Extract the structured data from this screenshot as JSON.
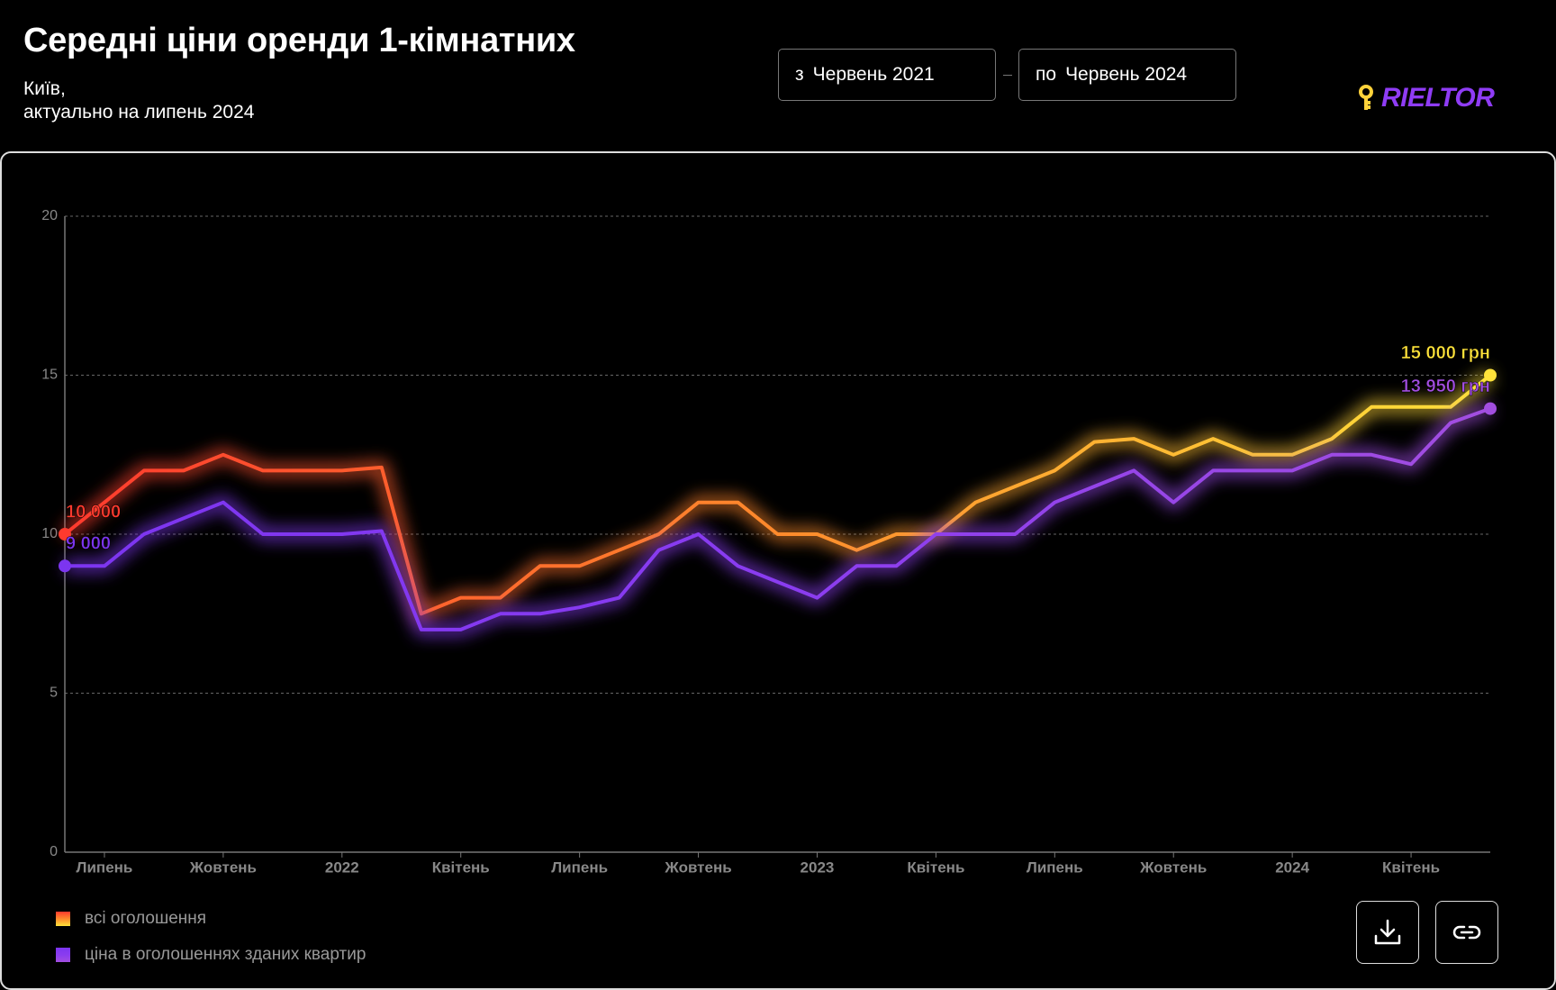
{
  "header": {
    "title": "Середні ціни оренди 1-кімнатних",
    "subtitle": [
      "Київ,",
      "актуально на липень 2024"
    ],
    "date_from": {
      "prefix": "з",
      "value": "Червень 2021"
    },
    "date_to": {
      "prefix": "по",
      "value": "Червень 2024"
    },
    "logo": "RIELTOR"
  },
  "chart_data": {
    "type": "line",
    "categories": [
      null,
      "Липень",
      null,
      null,
      "Жовтень",
      null,
      null,
      "2022",
      null,
      null,
      "Квітень",
      null,
      null,
      "Липень",
      null,
      null,
      "Жовтень",
      null,
      null,
      "2023",
      null,
      null,
      "Квітень",
      null,
      null,
      "Липень",
      null,
      null,
      "Жовтень",
      null,
      null,
      "2024",
      null,
      null,
      "Квітень",
      null,
      null
    ],
    "series": [
      {
        "name": "всі оголошення",
        "colors": [
          "#ff3a2e",
          "#ff8a2c",
          "#ffe33a"
        ],
        "values": [
          10,
          11,
          12,
          12,
          12.5,
          12,
          12,
          12,
          12.1,
          7.5,
          8,
          8,
          9,
          9,
          9.5,
          10,
          11,
          11,
          10,
          10,
          9.5,
          10,
          10,
          11,
          11.5,
          12,
          12.9,
          13,
          12.5,
          13,
          12.5,
          12.5,
          13,
          14,
          14,
          14,
          15
        ],
        "value_labels": [
          "10 000",
          null,
          null,
          null,
          null,
          null,
          null,
          null,
          null,
          null,
          null,
          null,
          null,
          null,
          null,
          null,
          null,
          null,
          null,
          null,
          null,
          null,
          null,
          null,
          null,
          null,
          null,
          null,
          null,
          null,
          null,
          null,
          null,
          null,
          null,
          null,
          "15 000 грн"
        ]
      },
      {
        "name": "ціна в оголошеннях зданих квартир",
        "colors": [
          "#7c35f0",
          "#8a3cf0",
          "#a24ee0"
        ],
        "values": [
          9,
          9,
          10,
          10.5,
          11,
          10,
          10,
          10,
          10.1,
          7,
          7,
          7.5,
          7.5,
          7.7,
          8,
          9.5,
          10,
          9,
          8.5,
          8,
          9,
          9,
          10,
          10,
          10,
          11,
          11.5,
          12,
          11,
          12,
          12,
          12,
          12.5,
          12.5,
          12.2,
          13.5,
          13.95
        ],
        "value_labels": [
          "9 000",
          null,
          null,
          null,
          null,
          null,
          null,
          null,
          null,
          null,
          null,
          null,
          null,
          null,
          null,
          null,
          null,
          null,
          null,
          null,
          null,
          null,
          null,
          null,
          null,
          null,
          null,
          null,
          null,
          null,
          null,
          null,
          null,
          null,
          null,
          null,
          "13 950 грн"
        ]
      }
    ],
    "ylim": [
      0,
      20
    ],
    "yticks": [
      0,
      5,
      10,
      15,
      20
    ],
    "grid": true
  }
}
